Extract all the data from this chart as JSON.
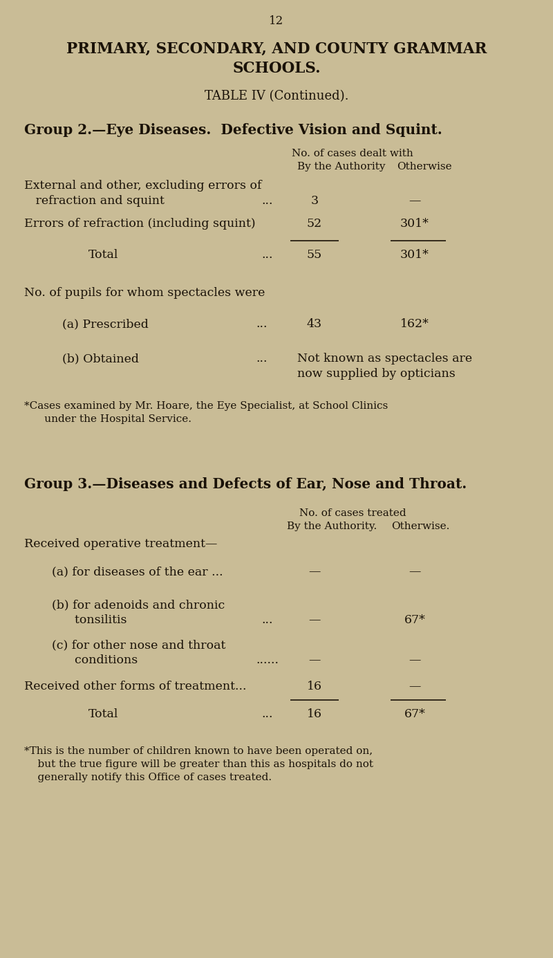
{
  "bg_color": "#c9bc96",
  "text_color": "#1a1208",
  "page_number": "12",
  "title_line1": "PRIMARY, SECONDARY, AND COUNTY GRAMMAR",
  "title_line2": "SCHOOLS.",
  "subtitle": "TABLE IV (Continued).",
  "group2_heading": "Group 2.—Eye Diseases.  Defective Vision and Squint.",
  "group2_col_header1": "No. of cases dealt with",
  "group2_col_header2": "By the Authority",
  "group2_col_header3": "Otherwise",
  "group2_footnote_line1": "*Cases examined by Mr. Hoare, the Eye Specialist, at School Clinics",
  "group2_footnote_line2": "      under the Hospital Service.",
  "group3_heading": "Group 3.—Diseases and Defects of Ear, Nose and Throat.",
  "group3_col_header1": "No. of cases treated",
  "group3_col_header2": "By the Authority.",
  "group3_col_header3": "Otherwise.",
  "group3_footnote_line1": "*This is the number of children known to have been operated on,",
  "group3_footnote_line2": "    but the true figure will be greater than this as hospitals do not",
  "group3_footnote_line3": "    generally notify this Office of cases treated."
}
